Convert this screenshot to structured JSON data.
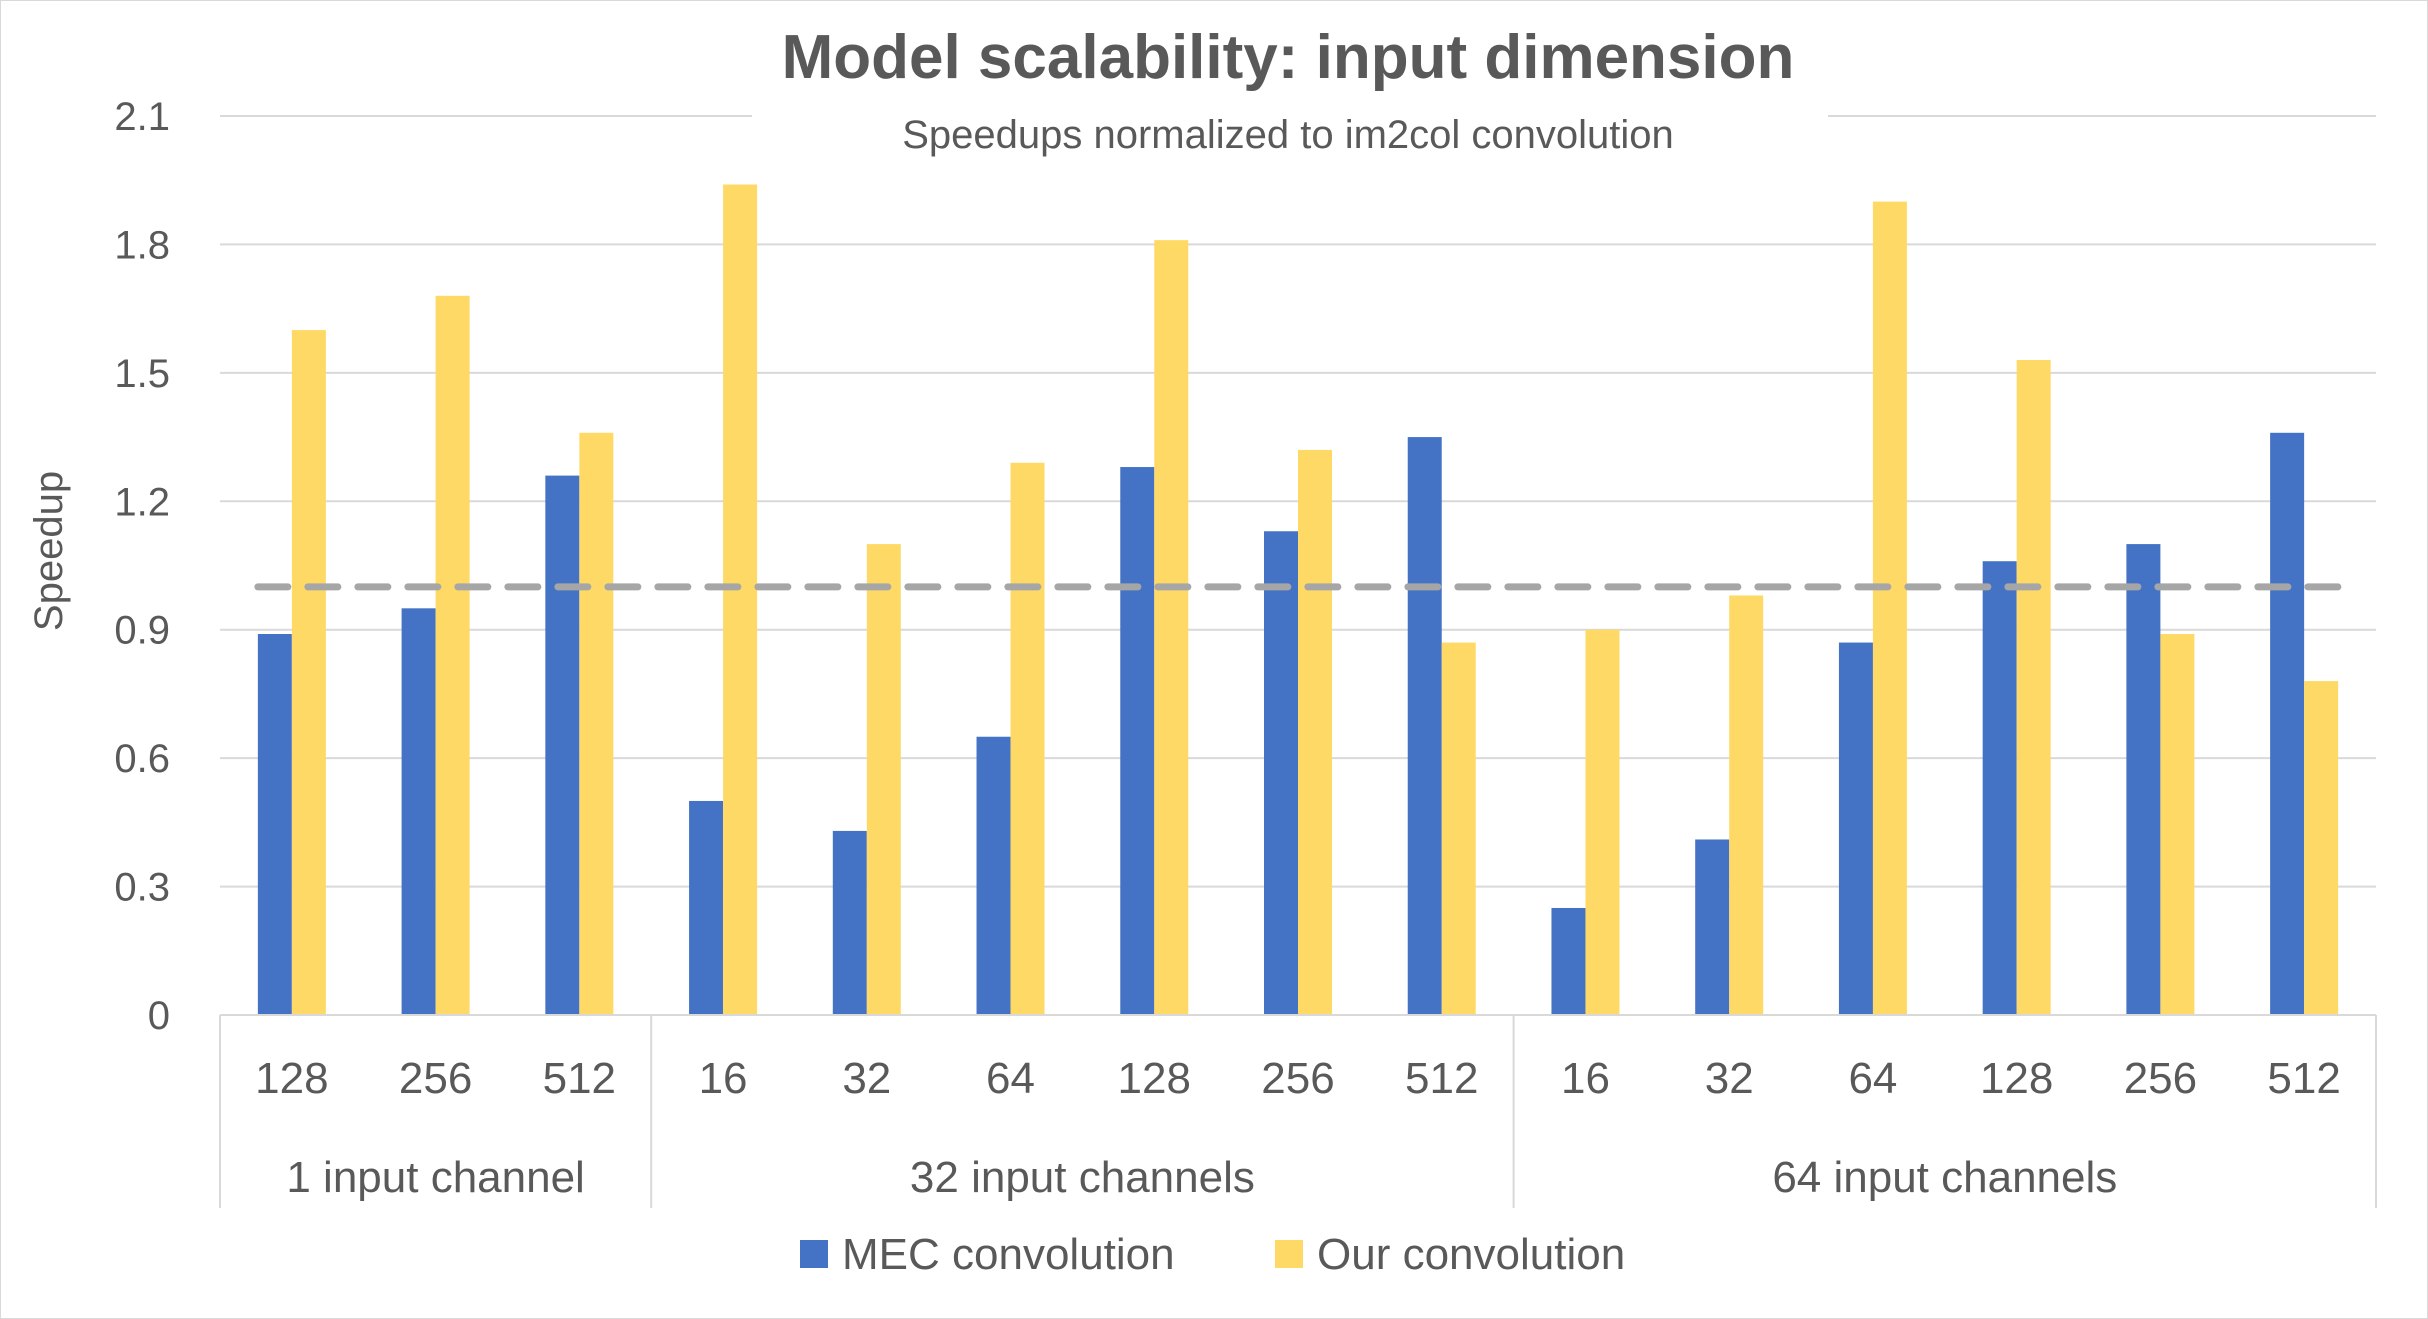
{
  "chart_data": {
    "type": "bar",
    "title": "Model scalability: input dimension",
    "subtitle": "Speedups normalized to im2col convolution",
    "ylabel": "Speedup",
    "xlabel": "",
    "ylim": [
      0,
      2.1
    ],
    "yticks": [
      "0",
      "0.3",
      "0.6",
      "0.9",
      "1.2",
      "1.5",
      "1.8",
      "2.1"
    ],
    "ytick_values": [
      0,
      0.3,
      0.6,
      0.9,
      1.2,
      1.5,
      1.8,
      2.1
    ],
    "categories": [
      "128",
      "256",
      "512",
      "16",
      "32",
      "64",
      "128",
      "256",
      "512",
      "16",
      "32",
      "64",
      "128",
      "256",
      "512"
    ],
    "groups": [
      {
        "label": "1 input channel",
        "count": 3
      },
      {
        "label": "32 input channels",
        "count": 6
      },
      {
        "label": "64 input channels",
        "count": 6
      }
    ],
    "series": [
      {
        "name": "MEC convolution",
        "color": "#4472C4",
        "values": [
          0.89,
          0.95,
          1.26,
          0.5,
          0.43,
          0.65,
          1.28,
          1.13,
          1.35,
          0.25,
          0.41,
          0.87,
          1.06,
          1.1,
          1.36
        ]
      },
      {
        "name": "Our convolution",
        "color": "#FFD966",
        "values": [
          1.6,
          1.68,
          1.36,
          1.94,
          1.1,
          1.29,
          1.81,
          1.32,
          0.87,
          0.9,
          0.98,
          1.9,
          1.53,
          0.89,
          0.78
        ]
      }
    ],
    "reference_line": {
      "value": 1.0,
      "style": "dashed",
      "color": "#A6A6A6"
    },
    "grid": true,
    "legend_position": "bottom"
  }
}
